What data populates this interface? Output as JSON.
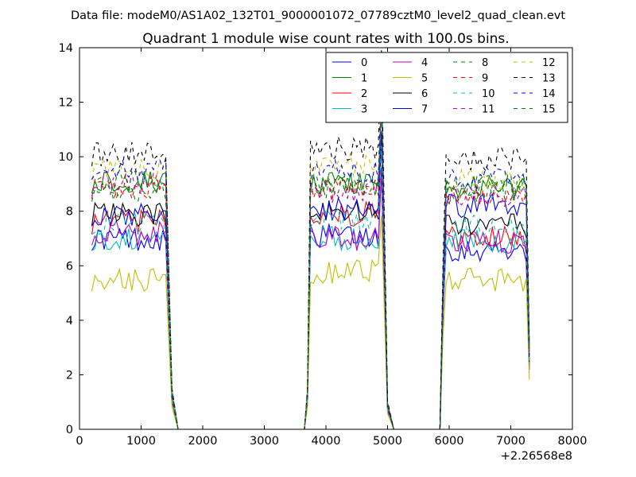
{
  "chart_data": {
    "type": "line",
    "suptitle": "Data file: modeM0/AS1A02_132T01_9000001072_07789cztM0_level2_quad_clean.evt",
    "title": "Quadrant 1 module wise count rates with 100.0s bins.",
    "xlabel": "",
    "ylabel": "",
    "x_offset_label": "+2.26568e8",
    "xlim": [
      0,
      8000
    ],
    "ylim": [
      0,
      14
    ],
    "xticks": [
      0,
      1000,
      2000,
      3000,
      4000,
      5000,
      6000,
      7000,
      8000
    ],
    "yticks": [
      0,
      2,
      4,
      6,
      8,
      10,
      12,
      14
    ],
    "grid": false,
    "legend_position": "top-right",
    "legend_columns": 4,
    "segments": [
      {
        "x_start": 200,
        "x_end": 1400,
        "step": 50
      },
      {
        "x_start": 3750,
        "x_end": 4850,
        "step": 50
      },
      {
        "x_start": 5950,
        "x_end": 7250,
        "step": 50
      }
    ],
    "gaps": [
      {
        "x": [
          1400,
          1500,
          1600,
          3650,
          3700,
          3750
        ],
        "y_rel": [
          1,
          0.15,
          0,
          0,
          0.15,
          1
        ]
      },
      {
        "x": [
          4850,
          4900,
          5000,
          5100,
          5850,
          5900,
          5950
        ],
        "y_rel": [
          1,
          1.35,
          0.1,
          0,
          0,
          0.6,
          1
        ]
      },
      {
        "x": [
          7250,
          7300
        ],
        "y_rel": [
          1,
          0.33
        ]
      }
    ],
    "series": [
      {
        "name": "0",
        "color": "#0000ff",
        "dash": false,
        "base": [
          7.0,
          7.1,
          6.6
        ]
      },
      {
        "name": "1",
        "color": "#008000",
        "dash": false,
        "base": [
          9.1,
          9.0,
          8.9
        ]
      },
      {
        "name": "2",
        "color": "#ff0000",
        "dash": false,
        "base": [
          7.6,
          7.9,
          7.1
        ]
      },
      {
        "name": "3",
        "color": "#00bfbf",
        "dash": false,
        "base": [
          7.0,
          7.0,
          6.9
        ]
      },
      {
        "name": "4",
        "color": "#bf00bf",
        "dash": false,
        "base": [
          7.2,
          7.0,
          6.9
        ]
      },
      {
        "name": "5",
        "color": "#bfbf00",
        "dash": false,
        "base": [
          5.5,
          5.8,
          5.5
        ]
      },
      {
        "name": "6",
        "color": "#000000",
        "dash": false,
        "base": [
          7.9,
          8.0,
          7.5
        ]
      },
      {
        "name": "7",
        "color": "#0000ff",
        "dash": false,
        "base": [
          7.9,
          8.1,
          8.2
        ]
      },
      {
        "name": "8",
        "color": "#008000",
        "dash": true,
        "base": [
          8.8,
          8.9,
          8.7
        ]
      },
      {
        "name": "9",
        "color": "#ff0000",
        "dash": true,
        "base": [
          8.9,
          8.8,
          8.6
        ]
      },
      {
        "name": "10",
        "color": "#00bfbf",
        "dash": true,
        "base": [
          7.6,
          7.7,
          7.5
        ]
      },
      {
        "name": "11",
        "color": "#bf00bf",
        "dash": true,
        "base": [
          9.0,
          8.7,
          8.6
        ]
      },
      {
        "name": "12",
        "color": "#bfbf00",
        "dash": true,
        "base": [
          9.6,
          9.7,
          9.2
        ]
      },
      {
        "name": "13",
        "color": "#000000",
        "dash": true,
        "base": [
          10.1,
          10.3,
          9.9
        ]
      },
      {
        "name": "14",
        "color": "#0000ff",
        "dash": true,
        "base": [
          9.6,
          9.5,
          9.2
        ]
      },
      {
        "name": "15",
        "color": "#008000",
        "dash": true,
        "base": [
          9.1,
          9.0,
          8.9
        ]
      }
    ]
  }
}
